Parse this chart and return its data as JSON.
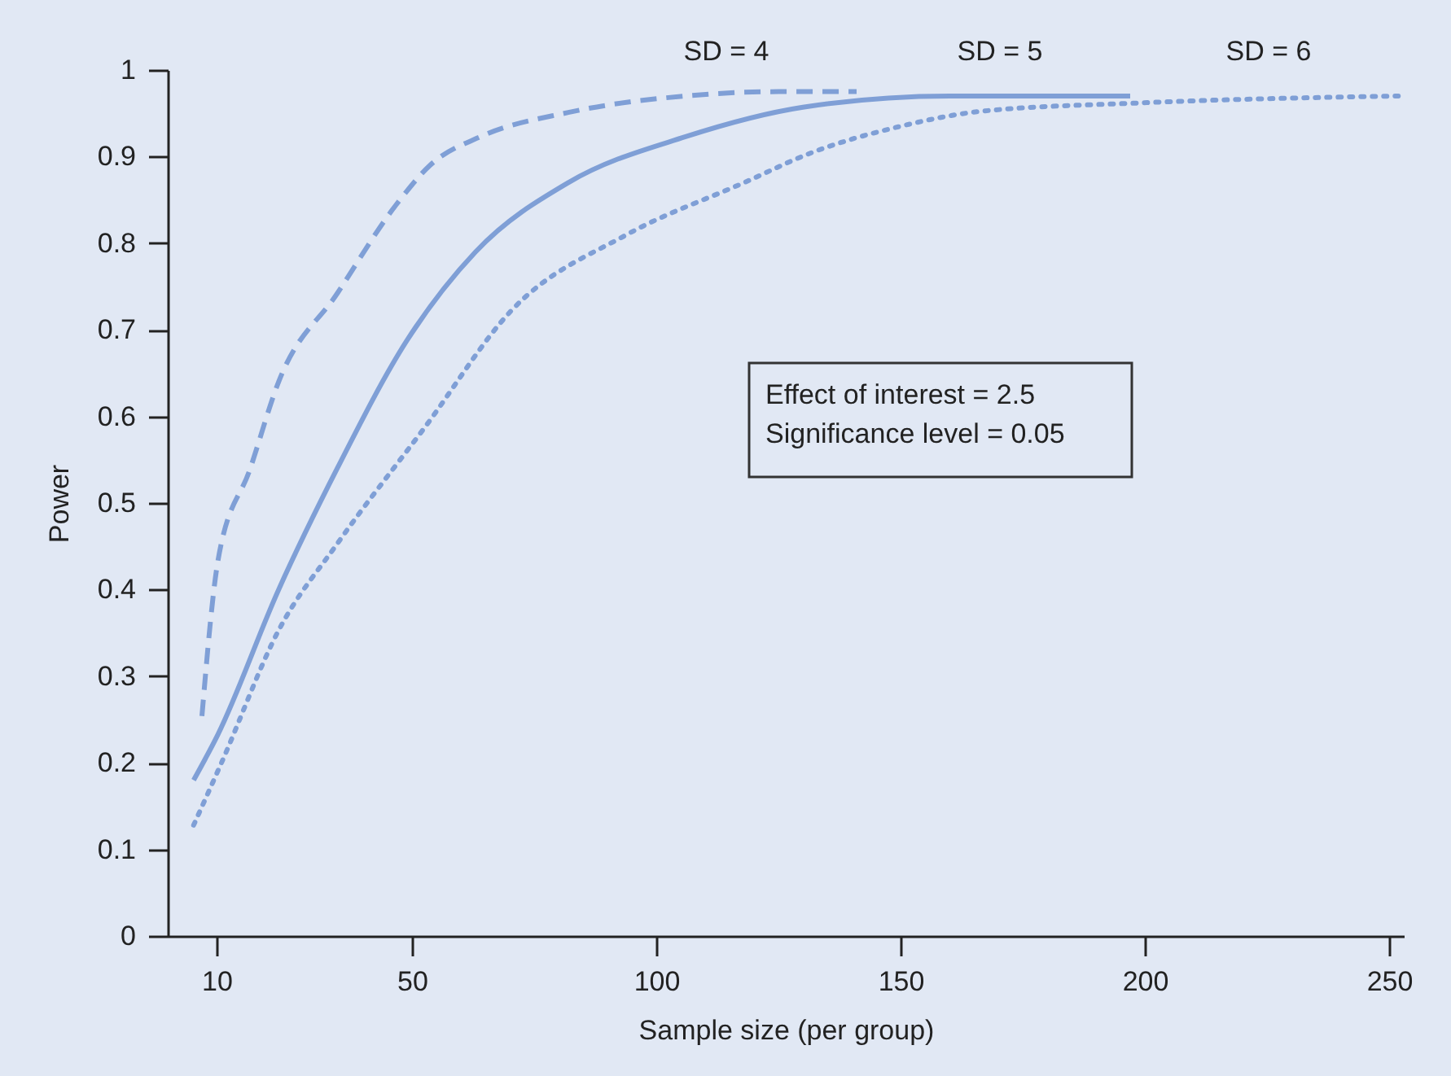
{
  "chart_data": {
    "type": "line",
    "xlabel": "Sample size (per group)",
    "ylabel": "Power",
    "xlim": [
      0,
      253
    ],
    "xticks": [
      10,
      50,
      100,
      150,
      200,
      250
    ],
    "ylim": [
      0,
      1
    ],
    "yticks": [
      0,
      0.1,
      0.2,
      0.3,
      0.4,
      0.5,
      0.6,
      0.7,
      0.8,
      0.9,
      1
    ],
    "grid": false,
    "legend": false,
    "marker": "none",
    "annotations": [
      "Effect of interest = 2.5",
      "Significance level = 0.05"
    ],
    "series": [
      {
        "name": "SD = 4",
        "color": "#7f9fd6",
        "line_style": "dashed",
        "x": [
          7,
          10.3,
          16.9,
          22.7,
          34.7,
          46.7,
          53.7,
          64,
          82,
          106,
          125,
          141
        ],
        "values": [
          0.254,
          0.434,
          0.54,
          0.64,
          0.742,
          0.844,
          0.89,
          0.923,
          0.951,
          0.97,
          0.975,
          0.975
        ]
      },
      {
        "name": "SD = 5",
        "color": "#7f9fd6",
        "line_style": "solid",
        "x": [
          5.3,
          10.3,
          22.7,
          34.7,
          49,
          63,
          82,
          106,
          130,
          160,
          197
        ],
        "values": [
          0.18,
          0.233,
          0.4,
          0.54,
          0.688,
          0.79,
          0.87,
          0.923,
          0.957,
          0.97,
          0.97
        ]
      },
      {
        "name": "SD = 6",
        "color": "#7f9fd6",
        "line_style": "dotted",
        "x": [
          5.3,
          11,
          22.7,
          34.7,
          52.7,
          70.3,
          94,
          118,
          132,
          150,
          166,
          199,
          252
        ],
        "values": [
          0.128,
          0.2,
          0.353,
          0.453,
          0.588,
          0.722,
          0.81,
          0.87,
          0.905,
          0.935,
          0.952,
          0.962,
          0.97
        ]
      }
    ]
  }
}
